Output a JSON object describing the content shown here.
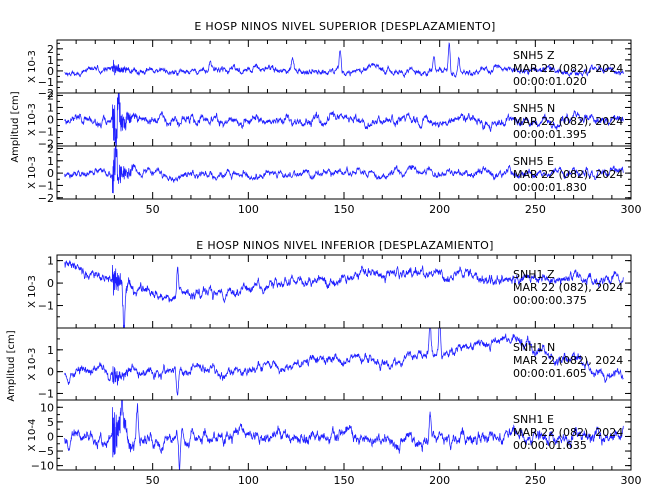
{
  "chart_data": [
    {
      "type": "line",
      "title": "E HOSP NINOS NIVEL SUPERIOR [DESPLAZAMIENTO]",
      "xlabel": "",
      "ylabel": "Amplitud [cm]",
      "xlim": [
        0,
        300
      ],
      "x_ticks": [
        50,
        100,
        150,
        200,
        250,
        300
      ],
      "series": [
        {
          "name": "SNH5   Z",
          "date": "MAR 22 (082), 2024",
          "time": "00:00:01.020",
          "scale": "X 10-3",
          "ylim": [
            -2,
            2.8
          ],
          "yticks": [
            -2,
            -1,
            0,
            1,
            2
          ],
          "seed": 11,
          "amp": 0.42,
          "burst_amp": 0.5,
          "trend": [
            0,
            0,
            0,
            0,
            0,
            0
          ],
          "spikes": [
            [
              80,
              1.0
            ],
            [
              123,
              1.1
            ],
            [
              148,
              2.0
            ],
            [
              197,
              1.2
            ],
            [
              205,
              2.7
            ],
            [
              210,
              1.6
            ]
          ]
        },
        {
          "name": "SNH5   N",
          "date": "MAR 22 (082), 2024",
          "time": "00:00:01.395",
          "scale": "X 10-3",
          "ylim": [
            -2.2,
            2.2
          ],
          "yticks": [
            -2,
            -1,
            0,
            1,
            2
          ],
          "seed": 23,
          "amp": 0.55,
          "burst_amp": 1.6,
          "trend": [
            0,
            0,
            0,
            0,
            0,
            0
          ],
          "spikes": [
            [
              31,
              -2.0
            ],
            [
              32,
              2.0
            ]
          ]
        },
        {
          "name": "SNH5   E",
          "date": "MAR 22 (082), 2024",
          "time": "00:00:01.830",
          "scale": "X 10-3",
          "ylim": [
            -2.1,
            2.2
          ],
          "yticks": [
            -2,
            -1,
            0,
            1,
            2
          ],
          "seed": 37,
          "amp": 0.45,
          "burst_amp": 1.4,
          "trend": [
            0,
            0,
            0,
            0,
            0,
            0
          ],
          "spikes": [
            [
              31,
              2.1
            ],
            [
              32,
              -2.0
            ]
          ]
        }
      ]
    },
    {
      "type": "line",
      "title": "E HOSP NINOS NIVEL INFERIOR [DESPLAZAMIENTO]",
      "xlabel": "",
      "ylabel": "Amplitud [cm]",
      "xlim": [
        0,
        300
      ],
      "x_ticks": [
        50,
        100,
        150,
        200,
        250,
        300
      ],
      "series": [
        {
          "name": "SNH1   Z",
          "date": "MAR 22 (082), 2024",
          "time": "00:00:00.375",
          "scale": "X 10-3",
          "ylim": [
            -2,
            1.25
          ],
          "yticks": [
            -1,
            0,
            1
          ],
          "seed": 41,
          "amp": 0.33,
          "burst_amp": 0.45,
          "trend": [
            1.0,
            -0.8,
            0.0,
            0.5,
            0.1,
            0.2
          ],
          "spikes": [
            [
              35,
              -1.9
            ],
            [
              63,
              1.1
            ]
          ]
        },
        {
          "name": "SNH1   N",
          "date": "MAR 22 (082), 2024",
          "time": "00:00:01.605",
          "scale": "X 10-3",
          "ylim": [
            -1.3,
            2.0
          ],
          "yticks": [
            -1,
            0,
            1
          ],
          "seed": 53,
          "amp": 0.33,
          "burst_amp": 0.35,
          "trend": [
            0.0,
            -0.1,
            0.4,
            0.6,
            1.5,
            -0.5
          ],
          "spikes": [
            [
              63,
              -1.2
            ],
            [
              200,
              1.9
            ],
            [
              195,
              1.6
            ]
          ]
        },
        {
          "name": "SNH1   E",
          "date": "MAR 22 (082), 2024",
          "time": "00:00:01.635",
          "scale": "X 10-4",
          "ylim": [
            -11.5,
            12.5
          ],
          "yticks": [
            -10,
            -5,
            0,
            5,
            10
          ],
          "seed": 67,
          "amp": 3.2,
          "burst_amp": 6.5,
          "trend": [
            0,
            0,
            0,
            0,
            0,
            0
          ],
          "spikes": [
            [
              34,
              12.0
            ],
            [
              42,
              11.5
            ],
            [
              64,
              -11.0
            ],
            [
              195,
              8.0
            ]
          ]
        }
      ]
    }
  ]
}
